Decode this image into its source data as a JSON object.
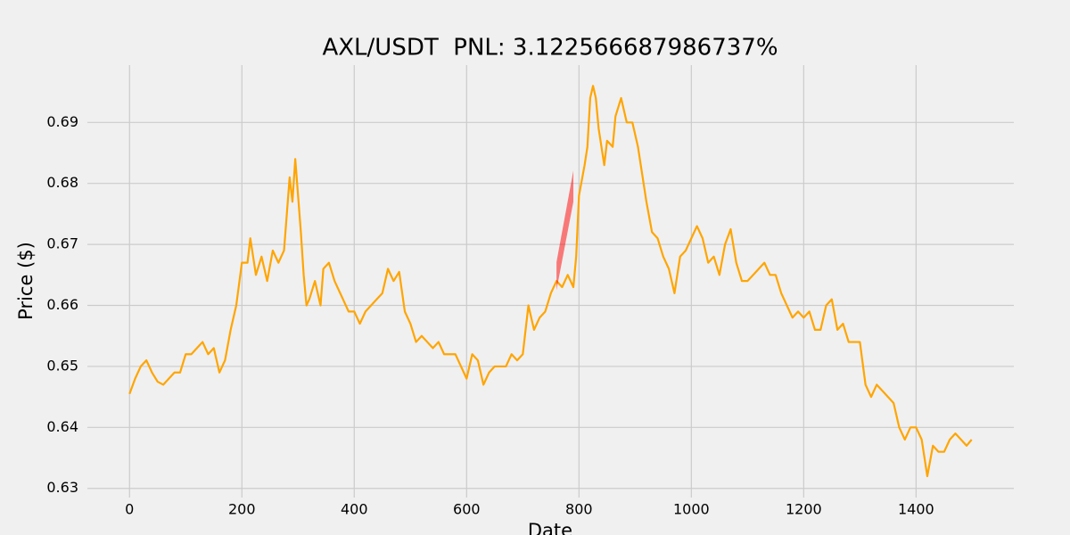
{
  "chart_data": {
    "type": "line",
    "title": "AXL/USDT  PNL: 3.122566687986737%",
    "xlabel": "Date",
    "ylabel": "Price ($)",
    "xlim": [
      -75,
      1574
    ],
    "ylim": [
      0.6285,
      0.6994
    ],
    "xticks": [
      0,
      200,
      400,
      600,
      800,
      1000,
      1200,
      1400
    ],
    "yticks": [
      0.63,
      0.64,
      0.65,
      0.66,
      0.67,
      0.68,
      0.69
    ],
    "grid": true,
    "x": [
      0,
      10,
      20,
      30,
      40,
      50,
      60,
      70,
      80,
      90,
      100,
      110,
      120,
      130,
      140,
      150,
      160,
      170,
      180,
      190,
      200,
      210,
      215,
      225,
      235,
      245,
      255,
      265,
      275,
      280,
      285,
      290,
      295,
      300,
      305,
      310,
      315,
      320,
      330,
      340,
      345,
      355,
      365,
      380,
      390,
      400,
      410,
      420,
      430,
      440,
      450,
      460,
      470,
      480,
      490,
      500,
      510,
      520,
      530,
      540,
      550,
      560,
      570,
      580,
      590,
      600,
      610,
      620,
      630,
      640,
      650,
      660,
      670,
      680,
      690,
      700,
      710,
      720,
      730,
      740,
      750,
      760,
      770,
      780,
      790,
      795,
      800,
      810,
      815,
      820,
      825,
      830,
      835,
      845,
      850,
      860,
      865,
      875,
      885,
      895,
      905,
      910,
      920,
      930,
      940,
      950,
      960,
      970,
      980,
      990,
      1000,
      1010,
      1020,
      1030,
      1040,
      1050,
      1060,
      1070,
      1080,
      1090,
      1100,
      1110,
      1120,
      1130,
      1140,
      1150,
      1160,
      1170,
      1180,
      1190,
      1200,
      1210,
      1220,
      1230,
      1240,
      1250,
      1260,
      1270,
      1280,
      1290,
      1300,
      1310,
      1320,
      1330,
      1340,
      1350,
      1360,
      1370,
      1380,
      1390,
      1400,
      1410,
      1420,
      1430,
      1440,
      1450,
      1460,
      1470,
      1480,
      1490,
      1499
    ],
    "series": [
      {
        "color": "#ffa500",
        "values": [
          0.6455,
          0.648,
          0.65,
          0.651,
          0.649,
          0.6475,
          0.647,
          0.648,
          0.649,
          0.649,
          0.652,
          0.652,
          0.653,
          0.654,
          0.652,
          0.653,
          0.649,
          0.651,
          0.656,
          0.66,
          0.667,
          0.667,
          0.671,
          0.665,
          0.668,
          0.664,
          0.669,
          0.667,
          0.669,
          0.675,
          0.681,
          0.677,
          0.684,
          0.678,
          0.672,
          0.665,
          0.66,
          0.661,
          0.664,
          0.66,
          0.666,
          0.667,
          0.664,
          0.661,
          0.659,
          0.659,
          0.657,
          0.659,
          0.66,
          0.661,
          0.662,
          0.666,
          0.664,
          0.6655,
          0.659,
          0.657,
          0.654,
          0.655,
          0.654,
          0.653,
          0.654,
          0.652,
          0.652,
          0.652,
          0.65,
          0.648,
          0.652,
          0.651,
          0.647,
          0.649,
          0.65,
          0.65,
          0.65,
          0.652,
          0.651,
          0.652,
          0.66,
          0.656,
          0.658,
          0.659,
          0.662,
          0.664,
          0.663,
          0.665,
          0.663,
          0.668,
          0.678,
          0.683,
          0.686,
          0.694,
          0.696,
          0.694,
          0.689,
          0.683,
          0.687,
          0.686,
          0.691,
          0.694,
          0.69,
          0.69,
          0.686,
          0.683,
          0.677,
          0.672,
          0.671,
          0.668,
          0.666,
          0.662,
          0.668,
          0.669,
          0.671,
          0.673,
          0.671,
          0.667,
          0.668,
          0.665,
          0.67,
          0.6725,
          0.667,
          0.664,
          0.664,
          0.665,
          0.666,
          0.667,
          0.665,
          0.665,
          0.662,
          0.66,
          0.658,
          0.659,
          0.658,
          0.659,
          0.656,
          0.656,
          0.66,
          0.661,
          0.656,
          0.657,
          0.654,
          0.654,
          0.654,
          0.647,
          0.645,
          0.647,
          0.646,
          0.645,
          0.644,
          0.64,
          0.638,
          0.64,
          0.64,
          0.638,
          0.632,
          0.637,
          0.636,
          0.636,
          0.638,
          0.639,
          0.638,
          0.637,
          0.638
        ]
      }
    ],
    "fill": {
      "color": "#ff0000",
      "x": [
        760,
        790
      ],
      "y1": [
        0.6625,
        0.677
      ],
      "y2": [
        0.6671,
        0.6821
      ]
    }
  }
}
